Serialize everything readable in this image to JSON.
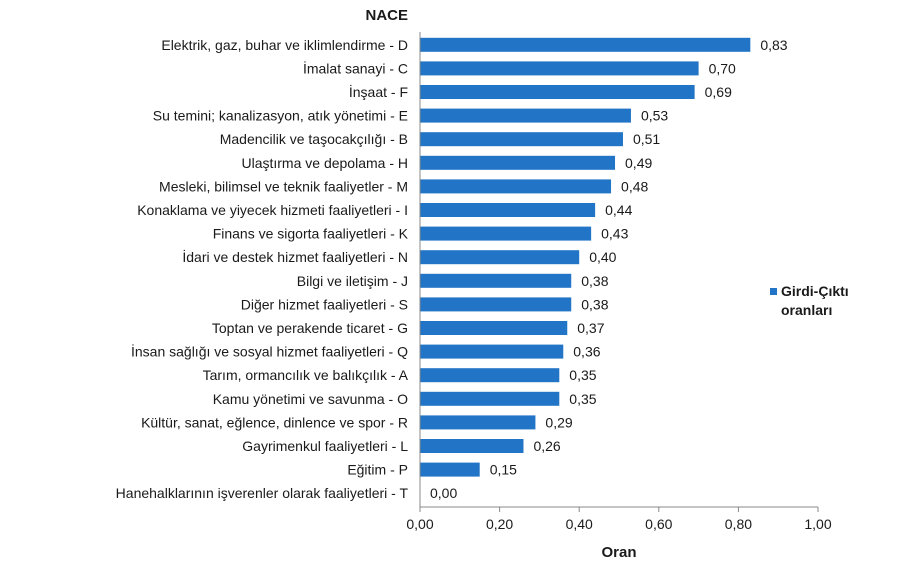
{
  "chart_data": {
    "type": "bar",
    "orientation": "horizontal",
    "title": "NACE",
    "xlabel": "Oran",
    "ylabel": "NACE",
    "xlim": [
      0,
      1
    ],
    "xticks": [
      "0,00",
      "0,20",
      "0,40",
      "0,60",
      "0,80",
      "1,00"
    ],
    "grid": false,
    "legend_position": "right",
    "bar_color": "#2275c6",
    "categories": [
      "Elektrik, gaz, buhar ve iklimlendirme - D",
      "İmalat sanayi - C",
      "İnşaat - F",
      "Su temini; kanalizasyon, atık yönetimi - E",
      "Madencilik ve taşocakçılığı - B",
      "Ulaştırma ve depolama - H",
      "Mesleki, bilimsel ve teknik faaliyetler - M",
      "Konaklama ve yiyecek hizmeti faaliyetleri - I",
      "Finans ve sigorta faaliyetleri - K",
      "İdari ve destek hizmet faaliyetleri - N",
      "Bilgi ve iletişim - J",
      "Diğer hizmet faaliyetleri - S",
      "Toptan ve perakende ticaret - G",
      "İnsan sağlığı ve sosyal hizmet faaliyetleri - Q",
      "Tarım, ormancılık ve balıkçılık - A",
      "Kamu yönetimi ve savunma - O",
      "Kültür, sanat, eğlence, dinlence ve spor - R",
      "Gayrimenkul faaliyetleri - L",
      "Eğitim - P",
      "Hanehalklarının işverenler olarak  faaliyetleri - T"
    ],
    "series": [
      {
        "name": "Girdi-Çıktı oranları",
        "values": [
          0.83,
          0.7,
          0.69,
          0.53,
          0.51,
          0.49,
          0.48,
          0.44,
          0.43,
          0.4,
          0.38,
          0.38,
          0.37,
          0.36,
          0.35,
          0.35,
          0.29,
          0.26,
          0.15,
          0.0
        ],
        "labels": [
          "0,83",
          "0,70",
          "0,69",
          "0,53",
          "0,51",
          "0,49",
          "0,48",
          "0,44",
          "0,43",
          "0,40",
          "0,38",
          "0,38",
          "0,37",
          "0,36",
          "0,35",
          "0,35",
          "0,29",
          "0,26",
          "0,15",
          "0,00"
        ]
      }
    ],
    "legend": {
      "line1": "Girdi-Çıktı",
      "line2": "oranları"
    }
  }
}
